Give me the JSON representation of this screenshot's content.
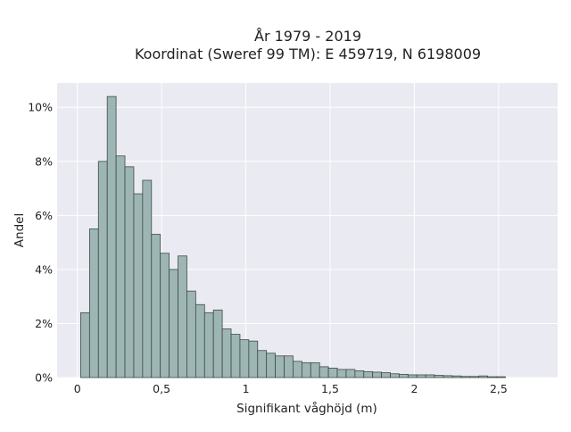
{
  "colors": {
    "plot_background": "#EAEAF2",
    "grid": "#FFFFFF",
    "bar_fill": "#9DB6B4",
    "bar_edge": "#3F4A48",
    "text": "#222222"
  },
  "chart_data": {
    "type": "bar",
    "title": "År 1979 - 2019",
    "subtitle": "Koordinat (Sweref 99 TM): E 459719, N 6198009",
    "xlabel": "Signifikant våghöjd (m)",
    "ylabel": "Andel",
    "xlim": [
      -0.12,
      2.85
    ],
    "ylim": [
      0,
      0.109
    ],
    "x_ticks": [
      0,
      0.5,
      1,
      1.5,
      2,
      2.5
    ],
    "x_tick_labels": [
      "0",
      "0,5",
      "1",
      "1,5",
      "2",
      "2,5"
    ],
    "y_ticks": [
      0,
      0.02,
      0.04,
      0.06,
      0.08,
      0.1
    ],
    "y_tick_labels": [
      "0%",
      "2%",
      "4%",
      "6%",
      "8%",
      "10%"
    ],
    "grid": true,
    "legend": "none",
    "bin_width": 0.0525,
    "bin_start": 0.02,
    "values": [
      0.024,
      0.055,
      0.08,
      0.104,
      0.082,
      0.078,
      0.068,
      0.073,
      0.053,
      0.046,
      0.04,
      0.045,
      0.032,
      0.027,
      0.024,
      0.025,
      0.018,
      0.016,
      0.014,
      0.0135,
      0.01,
      0.009,
      0.008,
      0.008,
      0.006,
      0.0055,
      0.0055,
      0.004,
      0.0035,
      0.003,
      0.003,
      0.0025,
      0.0022,
      0.002,
      0.0018,
      0.0014,
      0.0012,
      0.001,
      0.001,
      0.001,
      0.0008,
      0.0007,
      0.0006,
      0.0004,
      0.0004,
      0.0006,
      0.0003,
      0.0003
    ]
  }
}
